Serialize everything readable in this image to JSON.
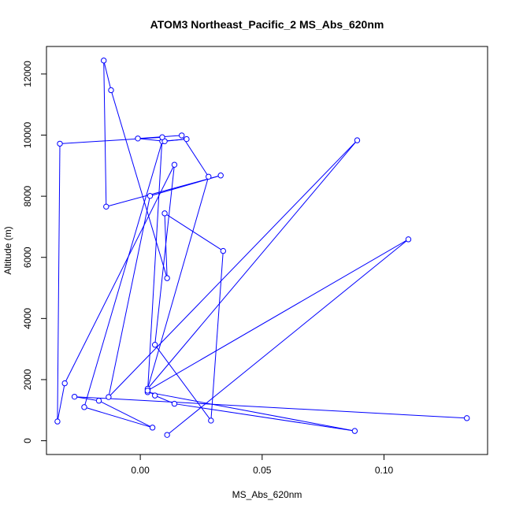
{
  "chart_data": {
    "type": "line",
    "title": "ATOM3 Northeast_Pacific_2 MS_Abs_620nm",
    "xlabel": "MS_Abs_620nm",
    "ylabel": "Altitude (m)",
    "xlim": [
      -0.0385,
      0.1425
    ],
    "ylim": [
      -450,
      12900
    ],
    "xticks": [
      0.0,
      0.05,
      0.1
    ],
    "xtick_labels": [
      "0.00",
      "0.05",
      "0.10"
    ],
    "yticks": [
      0,
      2000,
      4000,
      6000,
      8000,
      10000,
      12000
    ],
    "ytick_labels": [
      "0",
      "2000",
      "4000",
      "6000",
      "8000",
      "10000",
      "12000"
    ],
    "grid": false,
    "legend": "none",
    "colors": {
      "series": "#0000ff",
      "frame": "#000000"
    },
    "series": [
      {
        "x": [
          0.134,
          -0.027,
          -0.017,
          0.005,
          -0.023,
          0.009,
          0.019,
          0.01,
          -0.001,
          0.017,
          0.028,
          0.003,
          0.089,
          -0.013,
          0.004,
          0.033,
          -0.014,
          -0.015,
          -0.012,
          0.011,
          0.01,
          0.034,
          0.029,
          0.006,
          0.014,
          -0.031,
          -0.034,
          -0.033,
          0.009,
          0.003,
          0.088,
          0.014,
          0.006,
          0.003,
          0.11,
          0.011
        ],
        "y": [
          740,
          1440,
          1310,
          430,
          1100,
          9800,
          9870,
          9800,
          9890,
          9990,
          8640,
          1700,
          9830,
          1430,
          8010,
          8680,
          7660,
          12440,
          11470,
          5320,
          7440,
          6210,
          660,
          3140,
          9030,
          1880,
          630,
          9720,
          9930,
          1590,
          320,
          1210,
          1480,
          1640,
          6590,
          190
        ]
      }
    ]
  }
}
